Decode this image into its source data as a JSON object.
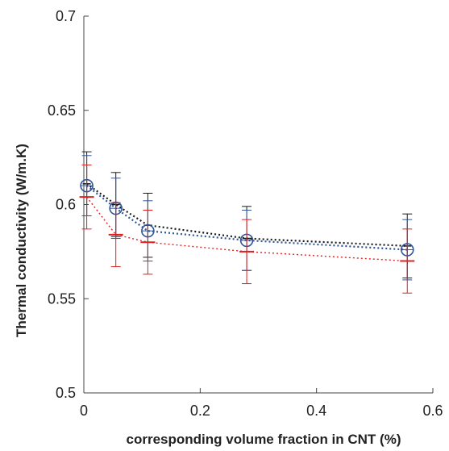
{
  "chart_data": {
    "type": "line",
    "title": "",
    "xlabel": "corresponding volume fraction in CNT  (%)",
    "ylabel": "Thermal conductivity (W/m.K)",
    "xlim": [
      0,
      0.6
    ],
    "ylim": [
      0.5,
      0.7
    ],
    "x_ticks": [
      0,
      0.2,
      0.4,
      0.6
    ],
    "x_tick_labels": [
      "0",
      "0.2",
      "0.4",
      "0.6"
    ],
    "y_ticks": [
      0.5,
      0.55,
      0.6,
      0.65,
      0.7
    ],
    "y_tick_labels": [
      "0.5",
      "0.55",
      "0.6",
      "0.65",
      "0.7"
    ],
    "grid": false,
    "legend": "none",
    "series": [
      {
        "color": "#1a1a1a",
        "line_style": "dotted",
        "marker": "cross",
        "x": [
          0.005,
          0.055,
          0.11,
          0.28,
          0.556
        ],
        "y": [
          0.611,
          0.6,
          0.589,
          0.582,
          0.578
        ],
        "error": [
          0.017,
          0.017,
          0.017,
          0.017,
          0.017
        ]
      },
      {
        "color": "#2f5597",
        "line_style": "dotted",
        "marker": "circle",
        "x": [
          0.005,
          0.055,
          0.11,
          0.28,
          0.556
        ],
        "y": [
          0.61,
          0.598,
          0.586,
          0.581,
          0.576
        ],
        "error": [
          0.016,
          0.016,
          0.016,
          0.016,
          0.016
        ]
      },
      {
        "color": "#e02020",
        "line_style": "dotted",
        "marker": "dash",
        "x": [
          0.005,
          0.055,
          0.11,
          0.28,
          0.556
        ],
        "y": [
          0.604,
          0.584,
          0.58,
          0.575,
          0.57
        ],
        "error": [
          0.017,
          0.017,
          0.017,
          0.017,
          0.017
        ]
      }
    ]
  }
}
